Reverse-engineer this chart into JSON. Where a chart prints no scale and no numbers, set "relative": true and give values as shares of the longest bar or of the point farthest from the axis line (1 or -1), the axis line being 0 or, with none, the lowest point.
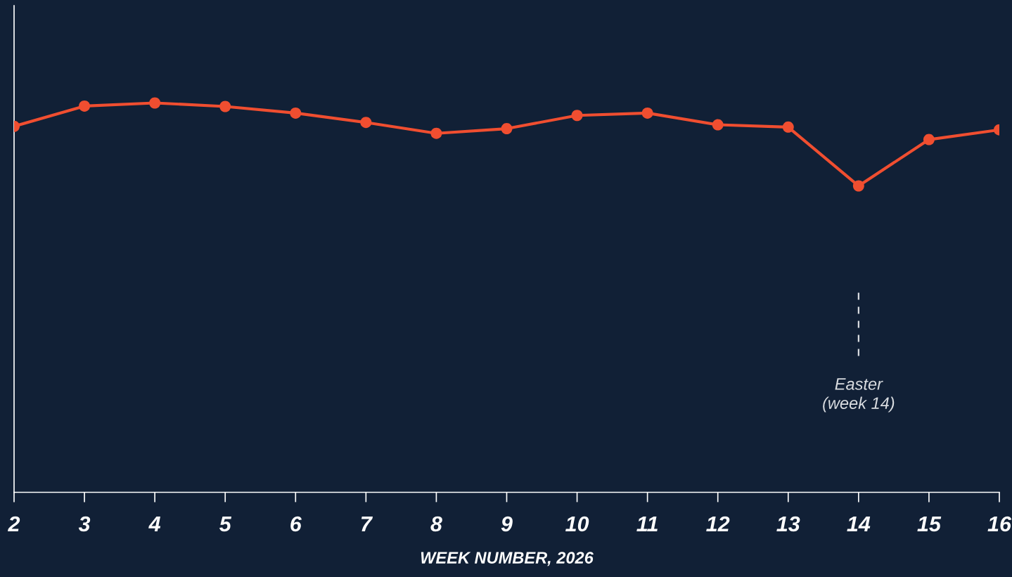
{
  "chart_data": {
    "type": "line",
    "relative": true,
    "x": [
      2,
      3,
      4,
      5,
      6,
      7,
      8,
      9,
      10,
      11,
      12,
      13,
      14,
      15,
      16
    ],
    "values": [
      0.94,
      0.992,
      1.0,
      0.991,
      0.974,
      0.95,
      0.922,
      0.934,
      0.968,
      0.974,
      0.944,
      0.938,
      0.787,
      0.906,
      0.931
    ],
    "color": "#f04e30",
    "marker": "circle",
    "line_style": "solid",
    "xlim": [
      2,
      16
    ],
    "xticks": [
      2,
      3,
      4,
      5,
      6,
      7,
      8,
      9,
      10,
      11,
      12,
      13,
      14,
      15,
      16
    ],
    "xlabel": "WEEK NUMBER, 2026",
    "ref_lines": [
      {
        "axis": "x",
        "value": 14,
        "label": "Easter\n(week 14)",
        "color": "#d9dce0",
        "line_style": "dashed"
      }
    ],
    "grid": false
  }
}
